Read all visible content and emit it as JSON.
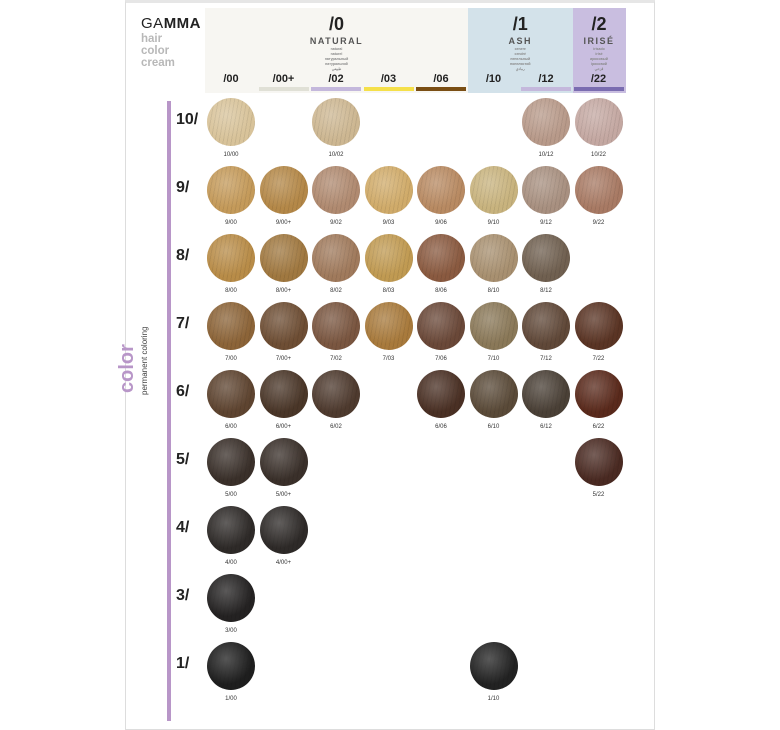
{
  "brand": {
    "name_light": "GA",
    "name_bold": "MMA",
    "sub": [
      "hair",
      "color",
      "cream"
    ]
  },
  "side": {
    "word": "color",
    "sub": "permanent coloring",
    "accent": "#b896c8"
  },
  "groups": [
    {
      "num": "/0",
      "name": "NATURAL",
      "trans": [
        "natural",
        "naturel",
        "натуральный",
        "натуральний",
        "طبيعي"
      ],
      "bg": "#f7f6f2",
      "cols": [
        0,
        4
      ]
    },
    {
      "num": "/1",
      "name": "ASH",
      "trans": [
        "cenere",
        "cendré",
        "пепельный",
        "попелястий",
        "رمادي"
      ],
      "bg": "#d3e2ea",
      "cols": [
        5,
        6
      ]
    },
    {
      "num": "/2",
      "name": "IRISÉ",
      "trans": [
        "irisado",
        "irisé",
        "ирисовый",
        "ірисовий",
        "قزحي"
      ],
      "bg": "#c9bee0",
      "cols": [
        7,
        7
      ]
    }
  ],
  "columns": [
    {
      "code": "/00",
      "bar": ""
    },
    {
      "code": "/00+",
      "bar": "#e0e0d6"
    },
    {
      "code": "/02",
      "bar": "#c4b8dc"
    },
    {
      "code": "/03",
      "bar": "#f5e04a"
    },
    {
      "code": "/06",
      "bar": "#7a4e14"
    },
    {
      "code": "/10",
      "bar": ""
    },
    {
      "code": "/12",
      "bar": "#c4b8dc"
    },
    {
      "code": "/22",
      "bar": "#7a6cb0"
    }
  ],
  "rows": [
    {
      "level": "10/",
      "swatches": [
        {
          "label": "10/00",
          "col": 0,
          "color": "#d8c39a"
        },
        {
          "label": "10/02",
          "col": 2,
          "color": "#cdb792"
        },
        {
          "label": "10/12",
          "col": 6,
          "color": "#b89a8a"
        },
        {
          "label": "10/22",
          "col": 7,
          "color": "#c4a8a2"
        }
      ]
    },
    {
      "level": "9/",
      "swatches": [
        {
          "label": "9/00",
          "col": 0,
          "color": "#c49a5a"
        },
        {
          "label": "9/00+",
          "col": 1,
          "color": "#b48848"
        },
        {
          "label": "9/02",
          "col": 2,
          "color": "#b08a70"
        },
        {
          "label": "9/03",
          "col": 3,
          "color": "#d0ab6a"
        },
        {
          "label": "9/06",
          "col": 4,
          "color": "#b88a62"
        },
        {
          "label": "9/10",
          "col": 5,
          "color": "#c8b37e"
        },
        {
          "label": "9/12",
          "col": 6,
          "color": "#a89080"
        },
        {
          "label": "9/22",
          "col": 7,
          "color": "#a87a64"
        }
      ]
    },
    {
      "level": "8/",
      "swatches": [
        {
          "label": "8/00",
          "col": 0,
          "color": "#b88c48"
        },
        {
          "label": "8/00+",
          "col": 1,
          "color": "#a07840"
        },
        {
          "label": "8/02",
          "col": 2,
          "color": "#a07a5c"
        },
        {
          "label": "8/03",
          "col": 3,
          "color": "#c09a52"
        },
        {
          "label": "8/06",
          "col": 4,
          "color": "#8a5a40"
        },
        {
          "label": "8/10",
          "col": 5,
          "color": "#a89070"
        },
        {
          "label": "8/12",
          "col": 6,
          "color": "#706050"
        }
      ]
    },
    {
      "level": "7/",
      "swatches": [
        {
          "label": "7/00",
          "col": 0,
          "color": "#8c6438"
        },
        {
          "label": "7/00+",
          "col": 1,
          "color": "#6e4e34"
        },
        {
          "label": "7/02",
          "col": 2,
          "color": "#7a5640"
        },
        {
          "label": "7/03",
          "col": 3,
          "color": "#a87a3c"
        },
        {
          "label": "7/06",
          "col": 4,
          "color": "#6a4838"
        },
        {
          "label": "7/10",
          "col": 5,
          "color": "#8a7858"
        },
        {
          "label": "7/12",
          "col": 6,
          "color": "#604838"
        },
        {
          "label": "7/22",
          "col": 7,
          "color": "#5a3424"
        }
      ]
    },
    {
      "level": "6/",
      "swatches": [
        {
          "label": "6/00",
          "col": 0,
          "color": "#5e4430"
        },
        {
          "label": "6/00+",
          "col": 1,
          "color": "#4a3628"
        },
        {
          "label": "6/02",
          "col": 2,
          "color": "#4e3a2e"
        },
        {
          "label": "6/06",
          "col": 4,
          "color": "#4a3024"
        },
        {
          "label": "6/10",
          "col": 5,
          "color": "#5a4a38"
        },
        {
          "label": "6/12",
          "col": 6,
          "color": "#4a4036"
        },
        {
          "label": "6/22",
          "col": 7,
          "color": "#5a2a1c"
        }
      ]
    },
    {
      "level": "5/",
      "swatches": [
        {
          "label": "5/00",
          "col": 0,
          "color": "#3a302a"
        },
        {
          "label": "5/00+",
          "col": 1,
          "color": "#3a302a"
        },
        {
          "label": "5/22",
          "col": 7,
          "color": "#4a2a22"
        }
      ]
    },
    {
      "level": "4/",
      "swatches": [
        {
          "label": "4/00",
          "col": 0,
          "color": "#2e2a28"
        },
        {
          "label": "4/00+",
          "col": 1,
          "color": "#2e2a28"
        }
      ]
    },
    {
      "level": "3/",
      "swatches": [
        {
          "label": "3/00",
          "col": 0,
          "color": "#242222"
        }
      ]
    },
    {
      "level": "1/",
      "swatches": [
        {
          "label": "1/00",
          "col": 0,
          "color": "#1e1e1e"
        },
        {
          "label": "1/10",
          "col": 5,
          "color": "#222222"
        }
      ]
    }
  ]
}
